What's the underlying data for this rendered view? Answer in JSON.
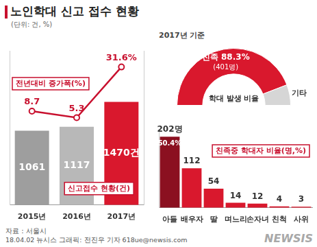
{
  "title": "노인학대 신고 접수 현황",
  "unit": "(단위: 건, %)",
  "source": "자료 : 서울시",
  "credit": "18.04.02 뉴시스 그래픽: 전진우 기자 618ue@newsis.com",
  "watermark": "NEWSIS",
  "chart_data": [
    {
      "type": "bar",
      "categories": [
        "2015년",
        "2016년",
        "2017년"
      ],
      "series": [
        {
          "name": "신고접수 현황(건)",
          "type": "bar",
          "colors": [
            "#9e9e9e",
            "#b8b8b8",
            "#d9182d"
          ],
          "values": [
            1061,
            1117,
            1470
          ],
          "value_labels": [
            "1061",
            "1117",
            "1470건"
          ]
        },
        {
          "name": "전년대비 증가폭(%)",
          "type": "line",
          "axis": "y2",
          "color": "#c8102e",
          "marker": "circle",
          "values": [
            8.7,
            5.3,
            31.6
          ],
          "value_labels": [
            "8.7",
            "5.3",
            "31.6%"
          ]
        }
      ],
      "ylim": [
        0,
        2200
      ],
      "y2lim": [
        -40,
        40
      ],
      "grid": false,
      "tick_labels": "x",
      "data_labels": true
    },
    {
      "type": "doughnut",
      "subtitle": "2017년 기준",
      "title": "학대 발생 비율",
      "categories": [
        "친족",
        "기타"
      ],
      "values": [
        88.3,
        11.7
      ],
      "value_labels": [
        "88.3%",
        null
      ],
      "colors": [
        "#d9182d",
        "#d6d6d6"
      ],
      "annotations": [
        {
          "category": "친족",
          "text": "(401명)"
        }
      ],
      "data_labels": true
    },
    {
      "type": "bar",
      "title": "친족중 학대자 비율(명,%)",
      "categories": [
        "아들",
        "배우자",
        "딸",
        "며느리",
        "손자녀",
        "친척",
        "사위"
      ],
      "values": [
        202,
        112,
        54,
        14,
        12,
        4,
        3
      ],
      "value_labels": [
        "202명",
        "112",
        "54",
        "14",
        "12",
        "4",
        "3"
      ],
      "colors": [
        "#8b1020",
        "#d9182d",
        "#d9182d",
        "#d9182d",
        "#d9182d",
        "#d9182d",
        "#d9182d"
      ],
      "annotations": [
        {
          "category": "아들",
          "text": "50.4%"
        }
      ],
      "ylim": [
        0,
        220
      ],
      "grid": false,
      "tick_labels": "x",
      "data_labels": true
    }
  ]
}
